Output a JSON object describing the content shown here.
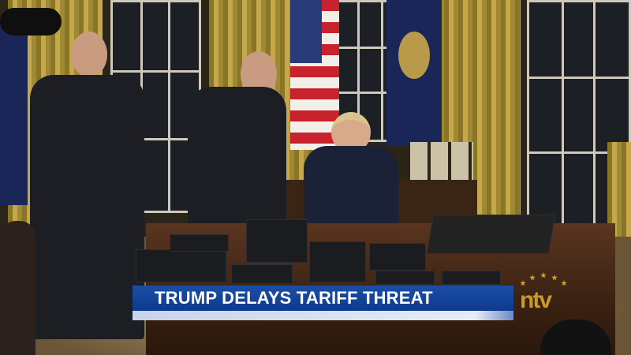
{
  "broadcast": {
    "headline": "TRUMP DELAYS TARIFF THREAT",
    "channel_logo": "ntv",
    "colors": {
      "chyron_blue": "#1c4ea7",
      "chyron_strip": "#dce4f2",
      "logo_gold": "#c79a2a"
    }
  }
}
